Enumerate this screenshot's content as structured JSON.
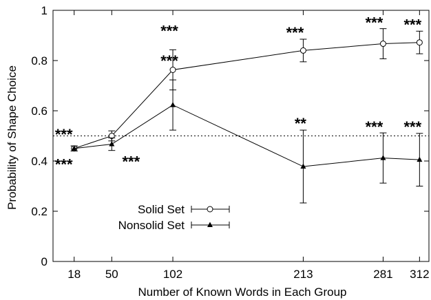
{
  "chart_data": {
    "type": "line",
    "xlabel": "Number of Known Words in Each Group",
    "ylabel": "Probability of Shape Choice",
    "x": [
      18,
      50,
      102,
      213,
      281,
      312
    ],
    "xticks": [
      "18",
      "50",
      "102",
      "213",
      "281",
      "312"
    ],
    "xlim": [
      0,
      320
    ],
    "ylim": [
      0,
      1
    ],
    "yticks": [
      "0",
      "0.2",
      "0.4",
      "0.6",
      "0.8",
      "1"
    ],
    "reference_line": 0.5,
    "grid": false,
    "legend_position": "bottom-left",
    "series": [
      {
        "name": "Solid Set",
        "marker": "open-circle",
        "values": [
          0.45,
          0.5,
          0.763,
          0.84,
          0.867,
          0.872
        ],
        "error": [
          0.01,
          0.02,
          0.08,
          0.045,
          0.06,
          0.045
        ],
        "significance": [
          "***",
          "",
          "***",
          "***",
          "***",
          "***"
        ]
      },
      {
        "name": "Nonsolid Set",
        "marker": "filled-triangle",
        "values": [
          0.45,
          0.467,
          0.623,
          0.378,
          0.412,
          0.405
        ],
        "error": [
          0.01,
          0.025,
          0.1,
          0.145,
          0.1,
          0.105
        ],
        "significance": [
          "***",
          "***",
          "***",
          "**",
          "***",
          "***"
        ]
      }
    ]
  }
}
